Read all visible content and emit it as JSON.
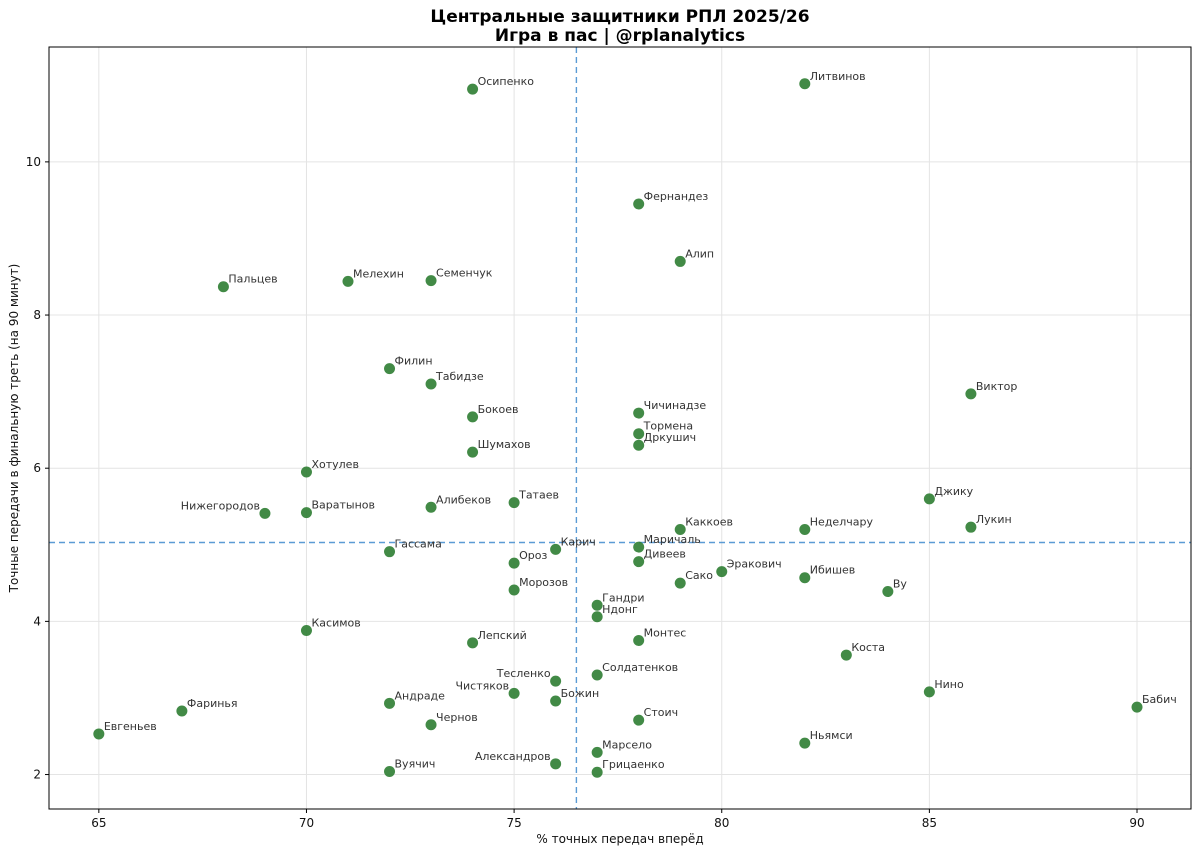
{
  "chart_data": {
    "type": "scatter",
    "title": "Центральные защитники РПЛ 2025/26",
    "subtitle": "Игра в пас | @rplanalytics",
    "xlabel": "% точных передач вперёд",
    "ylabel": "Точные передачи в финальную треть (на 90 минут)",
    "xlim": [
      63.8,
      91.3
    ],
    "ylim": [
      1.55,
      11.5
    ],
    "xticks": [
      65,
      70,
      75,
      80,
      85,
      90
    ],
    "yticks": [
      2,
      4,
      6,
      8,
      10
    ],
    "grid": true,
    "mean_x": 76.5,
    "mean_y": 5.03,
    "point_color": "#2e7d32",
    "mean_line_color": "#5b9bd5",
    "points": [
      {
        "name": "Осипенко",
        "x": 74,
        "y": 10.95
      },
      {
        "name": "Литвинов",
        "x": 82,
        "y": 11.02
      },
      {
        "name": "Фернандез",
        "x": 78,
        "y": 9.45
      },
      {
        "name": "Алип",
        "x": 79,
        "y": 8.7
      },
      {
        "name": "Пальцев",
        "x": 68,
        "y": 8.37
      },
      {
        "name": "Мелехин",
        "x": 71,
        "y": 8.44
      },
      {
        "name": "Семенчук",
        "x": 73,
        "y": 8.45
      },
      {
        "name": "Филин",
        "x": 72,
        "y": 7.3
      },
      {
        "name": "Табидзе",
        "x": 73,
        "y": 7.1
      },
      {
        "name": "Виктор",
        "x": 86,
        "y": 6.97
      },
      {
        "name": "Бокоев",
        "x": 74,
        "y": 6.67
      },
      {
        "name": "Чичинадзе",
        "x": 78,
        "y": 6.72
      },
      {
        "name": "Тормена",
        "x": 78,
        "y": 6.45
      },
      {
        "name": "Дркушич",
        "x": 78,
        "y": 6.3
      },
      {
        "name": "Шумахов",
        "x": 74,
        "y": 6.21
      },
      {
        "name": "Хотулев",
        "x": 70,
        "y": 5.95
      },
      {
        "name": "Джику",
        "x": 85,
        "y": 5.6
      },
      {
        "name": "Нижегородов",
        "x": 69,
        "y": 5.41
      },
      {
        "name": "Варатынов",
        "x": 70,
        "y": 5.42
      },
      {
        "name": "Алибеков",
        "x": 73,
        "y": 5.49
      },
      {
        "name": "Татаев",
        "x": 75,
        "y": 5.55
      },
      {
        "name": "Каккоев",
        "x": 79,
        "y": 5.2
      },
      {
        "name": "Неделчару",
        "x": 82,
        "y": 5.2
      },
      {
        "name": "Лукин",
        "x": 86,
        "y": 5.23
      },
      {
        "name": "Гассама",
        "x": 72,
        "y": 4.91
      },
      {
        "name": "Карич",
        "x": 76,
        "y": 4.94
      },
      {
        "name": "Маричаль",
        "x": 78,
        "y": 4.97
      },
      {
        "name": "Ороз",
        "x": 75,
        "y": 4.76
      },
      {
        "name": "Дивеев",
        "x": 78,
        "y": 4.78
      },
      {
        "name": "Эракович",
        "x": 80,
        "y": 4.65
      },
      {
        "name": "Сако",
        "x": 79,
        "y": 4.5
      },
      {
        "name": "Ибишев",
        "x": 82,
        "y": 4.57
      },
      {
        "name": "Ву",
        "x": 84,
        "y": 4.39
      },
      {
        "name": "Морозов",
        "x": 75,
        "y": 4.41
      },
      {
        "name": "Гандри",
        "x": 77,
        "y": 4.21
      },
      {
        "name": "Ндонг",
        "x": 77,
        "y": 4.06
      },
      {
        "name": "Касимов",
        "x": 70,
        "y": 3.88
      },
      {
        "name": "Лепский",
        "x": 74,
        "y": 3.72
      },
      {
        "name": "Монтес",
        "x": 78,
        "y": 3.75
      },
      {
        "name": "Коста",
        "x": 83,
        "y": 3.56
      },
      {
        "name": "Тесленко",
        "x": 76,
        "y": 3.22
      },
      {
        "name": "Солдатенков",
        "x": 77,
        "y": 3.3
      },
      {
        "name": "Чистяков",
        "x": 75,
        "y": 3.06
      },
      {
        "name": "Божин",
        "x": 76,
        "y": 2.96
      },
      {
        "name": "Нино",
        "x": 85,
        "y": 3.08
      },
      {
        "name": "Андраде",
        "x": 72,
        "y": 2.93
      },
      {
        "name": "Фаринья",
        "x": 67,
        "y": 2.83
      },
      {
        "name": "Бабич",
        "x": 90,
        "y": 2.88
      },
      {
        "name": "Стоич",
        "x": 78,
        "y": 2.71
      },
      {
        "name": "Чернов",
        "x": 73,
        "y": 2.65
      },
      {
        "name": "Евгеньев",
        "x": 65,
        "y": 2.53
      },
      {
        "name": "Ньямси",
        "x": 82,
        "y": 2.41
      },
      {
        "name": "Марсело",
        "x": 77,
        "y": 2.29
      },
      {
        "name": "Александров",
        "x": 76,
        "y": 2.14
      },
      {
        "name": "Грицаенко",
        "x": 77,
        "y": 2.03
      },
      {
        "name": "Вуячич",
        "x": 72,
        "y": 2.04
      }
    ]
  }
}
